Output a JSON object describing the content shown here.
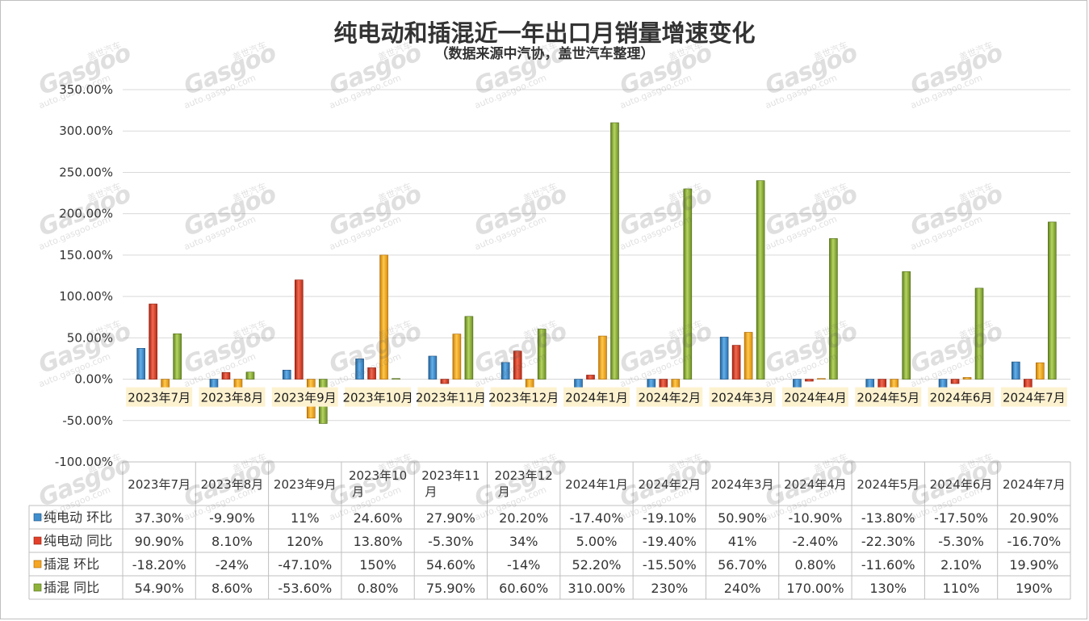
{
  "title": "纯电动和插混近一年出口月销量增速变化",
  "subtitle": "（数据来源中汽协，盖世汽车整理）",
  "watermark": {
    "cn": "盖世汽车",
    "big": "Gasgoo",
    "url": "auto.gasgoo.com"
  },
  "colors": {
    "ev_mom": "#3f8fcf",
    "ev_yoy": "#e2402a",
    "phev_mom": "#f5a623",
    "phev_yoy": "#8fb33a",
    "grid": "#d9d9d9",
    "label_bg": "#fdf2d0"
  },
  "chart_data": {
    "type": "bar",
    "title": "纯电动和插混近一年出口月销量增速变化",
    "subtitle": "（数据来源中汽协，盖世汽车整理）",
    "ylim": [
      -100,
      350
    ],
    "ytick_step": 50,
    "ytick_labels": [
      "350.00%",
      "300.00%",
      "250.00%",
      "200.00%",
      "150.00%",
      "100.00%",
      "50.00%",
      "0.00%",
      "-50.00%",
      "-100.00%"
    ],
    "grid": true,
    "categories": [
      "2023年7月",
      "2023年8月",
      "2023年9月",
      "2023年10月",
      "2023年11月",
      "2023年12月",
      "2024年1月",
      "2024年2月",
      "2024年3月",
      "2024年4月",
      "2024年5月",
      "2024年6月",
      "2024年7月"
    ],
    "series": [
      {
        "name": "纯电动 环比",
        "values": [
          37.3,
          -9.9,
          11,
          24.6,
          27.9,
          20.2,
          -17.4,
          -19.1,
          50.9,
          -10.9,
          -13.8,
          -17.5,
          20.9
        ]
      },
      {
        "name": "纯电动 同比",
        "values": [
          90.9,
          8.1,
          120,
          13.8,
          -5.3,
          34,
          5,
          -19.4,
          41,
          -2.4,
          -22.3,
          -5.3,
          -16.7
        ]
      },
      {
        "name": "插混 环比",
        "values": [
          -18.2,
          -24,
          -47.1,
          150,
          54.6,
          -14,
          52.2,
          -15.5,
          56.7,
          0.8,
          -11.6,
          2.1,
          19.9
        ]
      },
      {
        "name": "插混 同比",
        "values": [
          54.9,
          8.6,
          -53.6,
          0.8,
          75.9,
          60.6,
          310,
          230,
          240,
          170,
          130,
          110,
          190
        ]
      }
    ],
    "table": {
      "header": [
        "2023年7月",
        "2023年8月",
        "2023年9月",
        "2023年10月",
        "2023年11月",
        "2023年12月",
        "2024年1月",
        "2024年2月",
        "2024年3月",
        "2024年4月",
        "2024年5月",
        "2024年6月",
        "2024年7月"
      ],
      "rows": [
        {
          "label": "纯电动 环比",
          "cells": [
            "37.30%",
            "-9.90%",
            "11%",
            "24.60%",
            "27.90%",
            "20.20%",
            "-17.40%",
            "-19.10%",
            "50.90%",
            "-10.90%",
            "-13.80%",
            "-17.50%",
            "20.90%"
          ]
        },
        {
          "label": "纯电动 同比",
          "cells": [
            "90.90%",
            "8.10%",
            "120%",
            "13.80%",
            "-5.30%",
            "34%",
            "5.00%",
            "-19.40%",
            "41%",
            "-2.40%",
            "-22.30%",
            "-5.30%",
            "-16.70%"
          ]
        },
        {
          "label": "插混 环比",
          "cells": [
            "-18.20%",
            "-24%",
            "-47.10%",
            "150%",
            "54.60%",
            "-14%",
            "52.20%",
            "-15.50%",
            "56.70%",
            "0.80%",
            "-11.60%",
            "2.10%",
            "19.90%"
          ]
        },
        {
          "label": "插混 同比",
          "cells": [
            "54.90%",
            "8.60%",
            "-53.60%",
            "0.80%",
            "75.90%",
            "60.60%",
            "310.00%",
            "230%",
            "240%",
            "170.00%",
            "130%",
            "110%",
            "190%"
          ]
        }
      ]
    }
  }
}
